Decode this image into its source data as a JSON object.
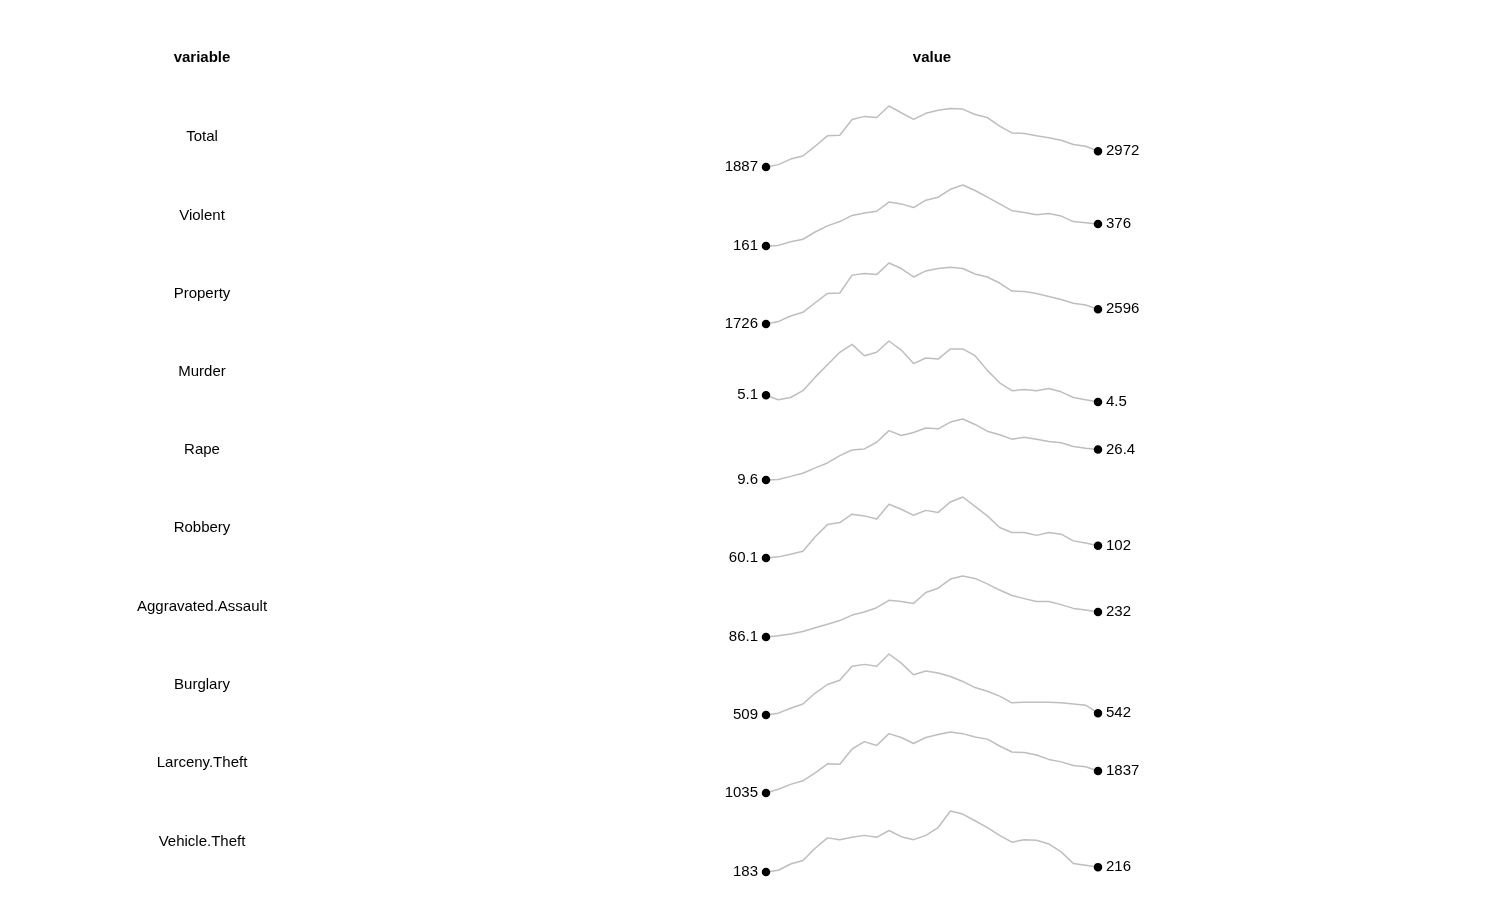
{
  "chart_data": [
    {
      "type": "other",
      "annotations": [
        "variable",
        "value"
      ]
    },
    {
      "type": "line",
      "ylabel": "Total",
      "color": "#bebebe",
      "categories": [
        null,
        null,
        null,
        null,
        null,
        null,
        null,
        null,
        null,
        null,
        null,
        null,
        null,
        null,
        null,
        null,
        null,
        null,
        null,
        null,
        null,
        null,
        null,
        null,
        null,
        null,
        null,
        null
      ],
      "values": [
        1887,
        2050,
        2430,
        2640,
        3310,
        4020,
        4060,
        5140,
        5350,
        5270,
        6060,
        5600,
        5140,
        5560,
        5770,
        5890,
        5850,
        5480,
        5270,
        4680,
        4220,
        4180,
        4020,
        3890,
        3720,
        3430,
        3310,
        2972
      ],
      "value_labels": [
        "1887",
        null,
        null,
        null,
        null,
        null,
        null,
        null,
        null,
        null,
        null,
        null,
        null,
        null,
        null,
        null,
        null,
        null,
        null,
        null,
        null,
        null,
        null,
        null,
        null,
        null,
        null,
        "2972"
      ]
    },
    {
      "type": "line",
      "ylabel": "Violent",
      "color": "#bebebe",
      "categories": [
        null,
        null,
        null,
        null,
        null,
        null,
        null,
        null,
        null,
        null,
        null,
        null,
        null,
        null,
        null,
        null,
        null,
        null,
        null,
        null,
        null,
        null,
        null,
        null,
        null,
        null,
        null,
        null
      ],
      "values": [
        161,
        167,
        203,
        227,
        298,
        358,
        400,
        460,
        483,
        501,
        591,
        573,
        537,
        609,
        639,
        716,
        758,
        704,
        639,
        573,
        507,
        489,
        466,
        478,
        454,
        400,
        388,
        376
      ],
      "value_labels": [
        "161",
        null,
        null,
        null,
        null,
        null,
        null,
        null,
        null,
        null,
        null,
        null,
        null,
        null,
        null,
        null,
        null,
        null,
        null,
        null,
        null,
        null,
        null,
        null,
        null,
        null,
        null,
        "376"
      ]
    },
    {
      "type": "line",
      "ylabel": "Property",
      "color": "#bebebe",
      "categories": [
        null,
        null,
        null,
        null,
        null,
        null,
        null,
        null,
        null,
        null,
        null,
        null,
        null,
        null,
        null,
        null,
        null,
        null,
        null,
        null,
        null,
        null,
        null,
        null,
        null,
        null,
        null,
        null
      ],
      "values": [
        1726,
        1870,
        2200,
        2420,
        2990,
        3540,
        3570,
        4630,
        4730,
        4660,
        5350,
        5020,
        4520,
        4880,
        5020,
        5100,
        5020,
        4700,
        4520,
        4160,
        3680,
        3650,
        3540,
        3360,
        3180,
        2960,
        2850,
        2596
      ],
      "value_labels": [
        "1726",
        null,
        null,
        null,
        null,
        null,
        null,
        null,
        null,
        null,
        null,
        null,
        null,
        null,
        null,
        null,
        null,
        null,
        null,
        null,
        null,
        null,
        null,
        null,
        null,
        null,
        null,
        "2596"
      ]
    },
    {
      "type": "line",
      "ylabel": "Murder",
      "color": "#bebebe",
      "categories": [
        null,
        null,
        null,
        null,
        null,
        null,
        null,
        null,
        null,
        null,
        null,
        null,
        null,
        null,
        null,
        null,
        null,
        null,
        null,
        null,
        null,
        null,
        null,
        null,
        null,
        null,
        null,
        null
      ],
      "values": [
        5.1,
        4.7,
        4.9,
        5.5,
        6.7,
        7.8,
        8.9,
        9.6,
        8.6,
        8.9,
        9.9,
        9.1,
        7.9,
        8.4,
        8.3,
        9.2,
        9.2,
        8.6,
        7.3,
        6.2,
        5.5,
        5.6,
        5.5,
        5.7,
        5.4,
        4.9,
        4.7,
        4.5
      ],
      "value_labels": [
        "5.1",
        null,
        null,
        null,
        null,
        null,
        null,
        null,
        null,
        null,
        null,
        null,
        null,
        null,
        null,
        null,
        null,
        null,
        null,
        null,
        null,
        null,
        null,
        null,
        null,
        null,
        null,
        "4.5"
      ]
    },
    {
      "type": "line",
      "ylabel": "Rape",
      "color": "#bebebe",
      "categories": [
        null,
        null,
        null,
        null,
        null,
        null,
        null,
        null,
        null,
        null,
        null,
        null,
        null,
        null,
        null,
        null,
        null,
        null,
        null,
        null,
        null,
        null,
        null,
        null,
        null,
        null,
        null,
        null
      ],
      "values": [
        9.6,
        9.9,
        11.6,
        13.3,
        16.3,
        19.0,
        23.0,
        26.1,
        26.7,
        30.4,
        36.8,
        34.1,
        35.8,
        38.2,
        37.8,
        41.5,
        43.2,
        40.2,
        36.5,
        34.5,
        32.1,
        33.1,
        32.1,
        30.8,
        30.1,
        28.1,
        27.1,
        26.4
      ],
      "value_labels": [
        "9.6",
        null,
        null,
        null,
        null,
        null,
        null,
        null,
        null,
        null,
        null,
        null,
        null,
        null,
        null,
        null,
        null,
        null,
        null,
        null,
        null,
        null,
        null,
        null,
        null,
        null,
        null,
        "26.4"
      ]
    },
    {
      "type": "line",
      "ylabel": "Robbery",
      "color": "#bebebe",
      "categories": [
        null,
        null,
        null,
        null,
        null,
        null,
        null,
        null,
        null,
        null,
        null,
        null,
        null,
        null,
        null,
        null,
        null,
        null,
        null,
        null,
        null,
        null,
        null,
        null,
        null,
        null,
        null,
        null
      ],
      "values": [
        60.1,
        64,
        73,
        83,
        133,
        175,
        182,
        211,
        205,
        194,
        245,
        228,
        207,
        224,
        217,
        253,
        270,
        238,
        205,
        165,
        148,
        148,
        138,
        148,
        142,
        119,
        112,
        102
      ],
      "value_labels": [
        "60.1",
        null,
        null,
        null,
        null,
        null,
        null,
        null,
        null,
        null,
        null,
        null,
        null,
        null,
        null,
        null,
        null,
        null,
        null,
        null,
        null,
        null,
        null,
        null,
        null,
        null,
        null,
        "102"
      ]
    },
    {
      "type": "line",
      "ylabel": "Aggravated.Assault",
      "color": "#bebebe",
      "categories": [
        null,
        null,
        null,
        null,
        null,
        null,
        null,
        null,
        null,
        null,
        null,
        null,
        null,
        null,
        null,
        null,
        null,
        null,
        null,
        null,
        null,
        null,
        null,
        null,
        null,
        null,
        null,
        null
      ],
      "values": [
        86.1,
        93,
        104,
        118,
        140,
        161,
        182,
        214,
        232,
        257,
        300,
        293,
        282,
        346,
        371,
        424,
        442,
        428,
        396,
        360,
        328,
        310,
        293,
        293,
        275,
        253,
        243,
        232
      ],
      "value_labels": [
        "86.1",
        null,
        null,
        null,
        null,
        null,
        null,
        null,
        null,
        null,
        null,
        null,
        null,
        null,
        null,
        null,
        null,
        null,
        null,
        null,
        null,
        null,
        null,
        null,
        null,
        null,
        null,
        "232"
      ]
    },
    {
      "type": "line",
      "ylabel": "Burglary",
      "color": "#bebebe",
      "categories": [
        null,
        null,
        null,
        null,
        null,
        null,
        null,
        null,
        null,
        null,
        null,
        null,
        null,
        null,
        null,
        null,
        null,
        null,
        null,
        null,
        null,
        null,
        null,
        null,
        null,
        null,
        null,
        null
      ],
      "values": [
        509,
        542,
        630,
        707,
        905,
        1059,
        1136,
        1389,
        1422,
        1389,
        1609,
        1444,
        1235,
        1301,
        1268,
        1202,
        1114,
        1004,
        938,
        850,
        729,
        740,
        740,
        740,
        729,
        707,
        685,
        542
      ],
      "value_labels": [
        "509",
        null,
        null,
        null,
        null,
        null,
        null,
        null,
        null,
        null,
        null,
        null,
        null,
        null,
        null,
        null,
        null,
        null,
        null,
        null,
        null,
        null,
        null,
        null,
        null,
        null,
        null,
        "542"
      ]
    },
    {
      "type": "line",
      "ylabel": "Larceny.Theft",
      "color": "#bebebe",
      "categories": [
        null,
        null,
        null,
        null,
        null,
        null,
        null,
        null,
        null,
        null,
        null,
        null,
        null,
        null,
        null,
        null,
        null,
        null,
        null,
        null,
        null,
        null,
        null,
        null,
        null,
        null,
        null,
        null
      ],
      "values": [
        1035,
        1170,
        1350,
        1480,
        1770,
        2100,
        2080,
        2640,
        2910,
        2770,
        3200,
        3060,
        2840,
        3060,
        3170,
        3260,
        3200,
        3080,
        3000,
        2750,
        2530,
        2510,
        2420,
        2260,
        2170,
        2040,
        1990,
        1837
      ],
      "value_labels": [
        "1035",
        null,
        null,
        null,
        null,
        null,
        null,
        null,
        null,
        null,
        null,
        null,
        null,
        null,
        null,
        null,
        null,
        null,
        null,
        null,
        null,
        null,
        null,
        null,
        null,
        null,
        null,
        "1837"
      ]
    },
    {
      "type": "line",
      "ylabel": "Vehicle.Theft",
      "color": "#bebebe",
      "categories": [
        null,
        null,
        null,
        null,
        null,
        null,
        null,
        null,
        null,
        null,
        null,
        null,
        null,
        null,
        null,
        null,
        null,
        null,
        null,
        null,
        null,
        null,
        null,
        null,
        null,
        null,
        null,
        null
      ],
      "values": [
        183,
        195,
        237,
        261,
        344,
        414,
        402,
        418,
        431,
        418,
        464,
        422,
        402,
        431,
        484,
        596,
        575,
        530,
        484,
        431,
        385,
        402,
        398,
        373,
        319,
        241,
        228,
        216
      ],
      "value_labels": [
        "183",
        null,
        null,
        null,
        null,
        null,
        null,
        null,
        null,
        null,
        null,
        null,
        null,
        null,
        null,
        null,
        null,
        null,
        null,
        null,
        null,
        null,
        null,
        null,
        null,
        null,
        null,
        "216"
      ]
    }
  ]
}
